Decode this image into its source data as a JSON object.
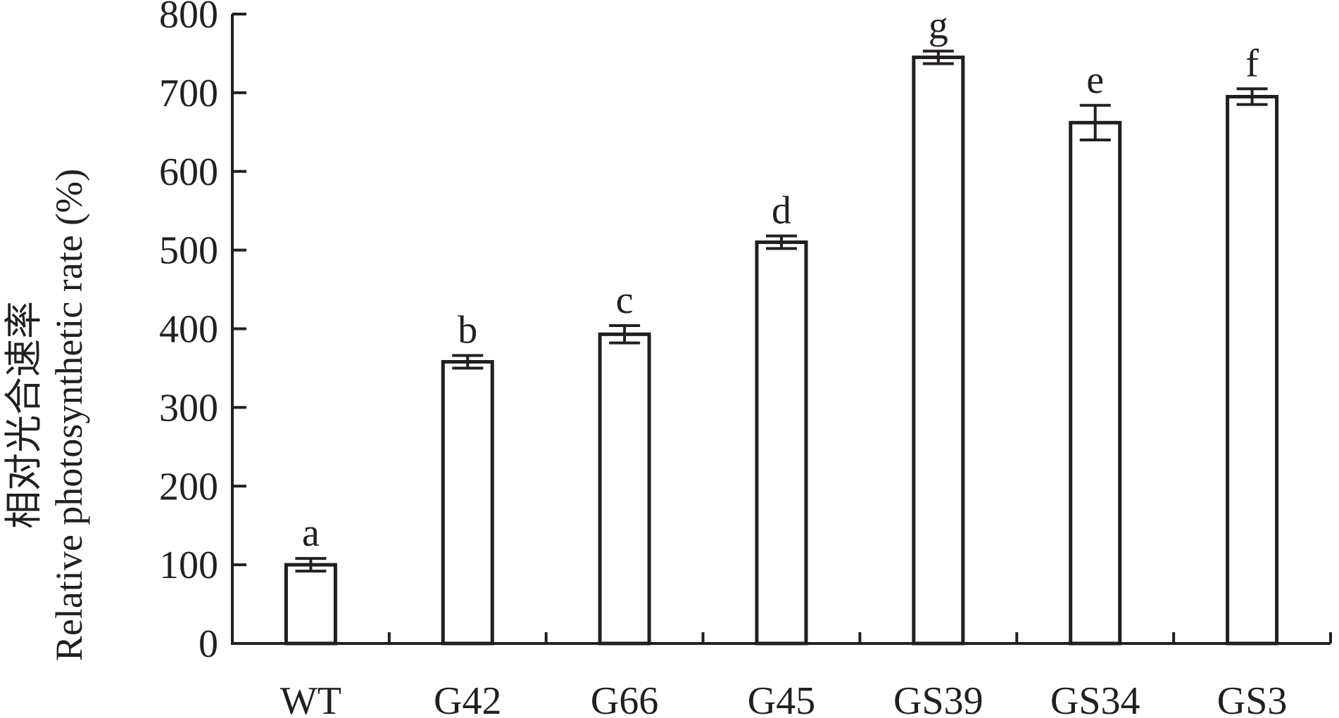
{
  "chart_data": {
    "type": "bar",
    "title": "",
    "xlabel": "",
    "ylabel_cn": "相对光合速率",
    "ylabel": "Relative photosynthetic rate (%)",
    "ylim": [
      0,
      800
    ],
    "yticks": [
      0,
      100,
      200,
      300,
      400,
      500,
      600,
      700,
      800
    ],
    "categories": [
      "WT",
      "G42",
      "G66",
      "G45",
      "GS39",
      "GS34",
      "GS3"
    ],
    "values": [
      100,
      358,
      393,
      510,
      745,
      662,
      695
    ],
    "errors": [
      8,
      8,
      11,
      8,
      8,
      22,
      10
    ],
    "significance": [
      "a",
      "b",
      "c",
      "d",
      "g",
      "e",
      "f"
    ],
    "grid": false,
    "bar_fill": "#ffffff",
    "stroke_color": "#231f20"
  }
}
